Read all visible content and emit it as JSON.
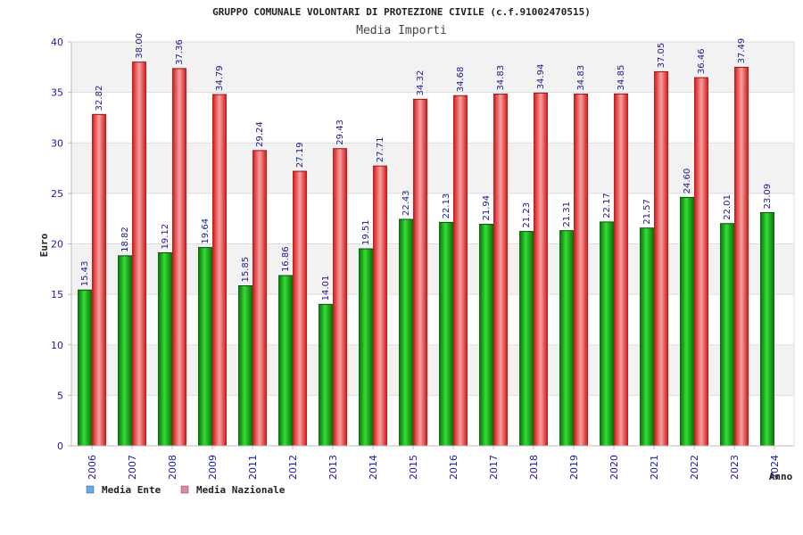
{
  "chart_data": {
    "type": "bar",
    "title": "GRUPPO COMUNALE VOLONTARI DI PROTEZIONE CIVILE (c.f.91002470515)",
    "subtitle": "Media Importi",
    "xlabel": "Anno",
    "ylabel": "Euro",
    "ylim": [
      0,
      40
    ],
    "yticks": [
      0,
      5,
      10,
      15,
      20,
      25,
      30,
      35,
      40
    ],
    "categories": [
      "2006",
      "2007",
      "2008",
      "2009",
      "2011",
      "2012",
      "2013",
      "2014",
      "2015",
      "2016",
      "2017",
      "2018",
      "2019",
      "2020",
      "2021",
      "2022",
      "2023",
      "2024"
    ],
    "series": [
      {
        "name": "Media Ente",
        "color": "#22aa22",
        "values": [
          15.43,
          18.82,
          19.12,
          19.64,
          15.85,
          16.86,
          14.01,
          19.51,
          22.43,
          22.13,
          21.94,
          21.23,
          21.31,
          22.17,
          21.57,
          24.6,
          22.01,
          23.09
        ],
        "labels": [
          "15.43",
          "18.82",
          "19.12",
          "19.64",
          "15.85",
          "16.86",
          "14.01",
          "19.51",
          "22.43",
          "22.13",
          "21.94",
          "21.23",
          "21.31",
          "22.17",
          "21.57",
          "24.60",
          "22.01",
          "23.09"
        ]
      },
      {
        "name": "Media Nazionale",
        "color": "#ee2222",
        "values": [
          32.82,
          38.0,
          37.36,
          34.79,
          29.24,
          27.19,
          29.43,
          27.71,
          34.32,
          34.68,
          34.83,
          34.94,
          34.83,
          34.85,
          37.05,
          36.46,
          37.49,
          null
        ],
        "labels": [
          "32.82",
          "38.00",
          "37.36",
          "34.79",
          "29.24",
          "27.19",
          "29.43",
          "27.71",
          "34.32",
          "34.68",
          "34.83",
          "34.94",
          "34.83",
          "34.85",
          "37.05",
          "36.46",
          "37.49",
          null
        ]
      }
    ],
    "legend": [
      {
        "label": "Media Ente",
        "color": "#66aaee"
      },
      {
        "label": "Media Nazionale",
        "color": "#dd88aa"
      }
    ],
    "grid": true,
    "legend_position": "bottom-left"
  }
}
